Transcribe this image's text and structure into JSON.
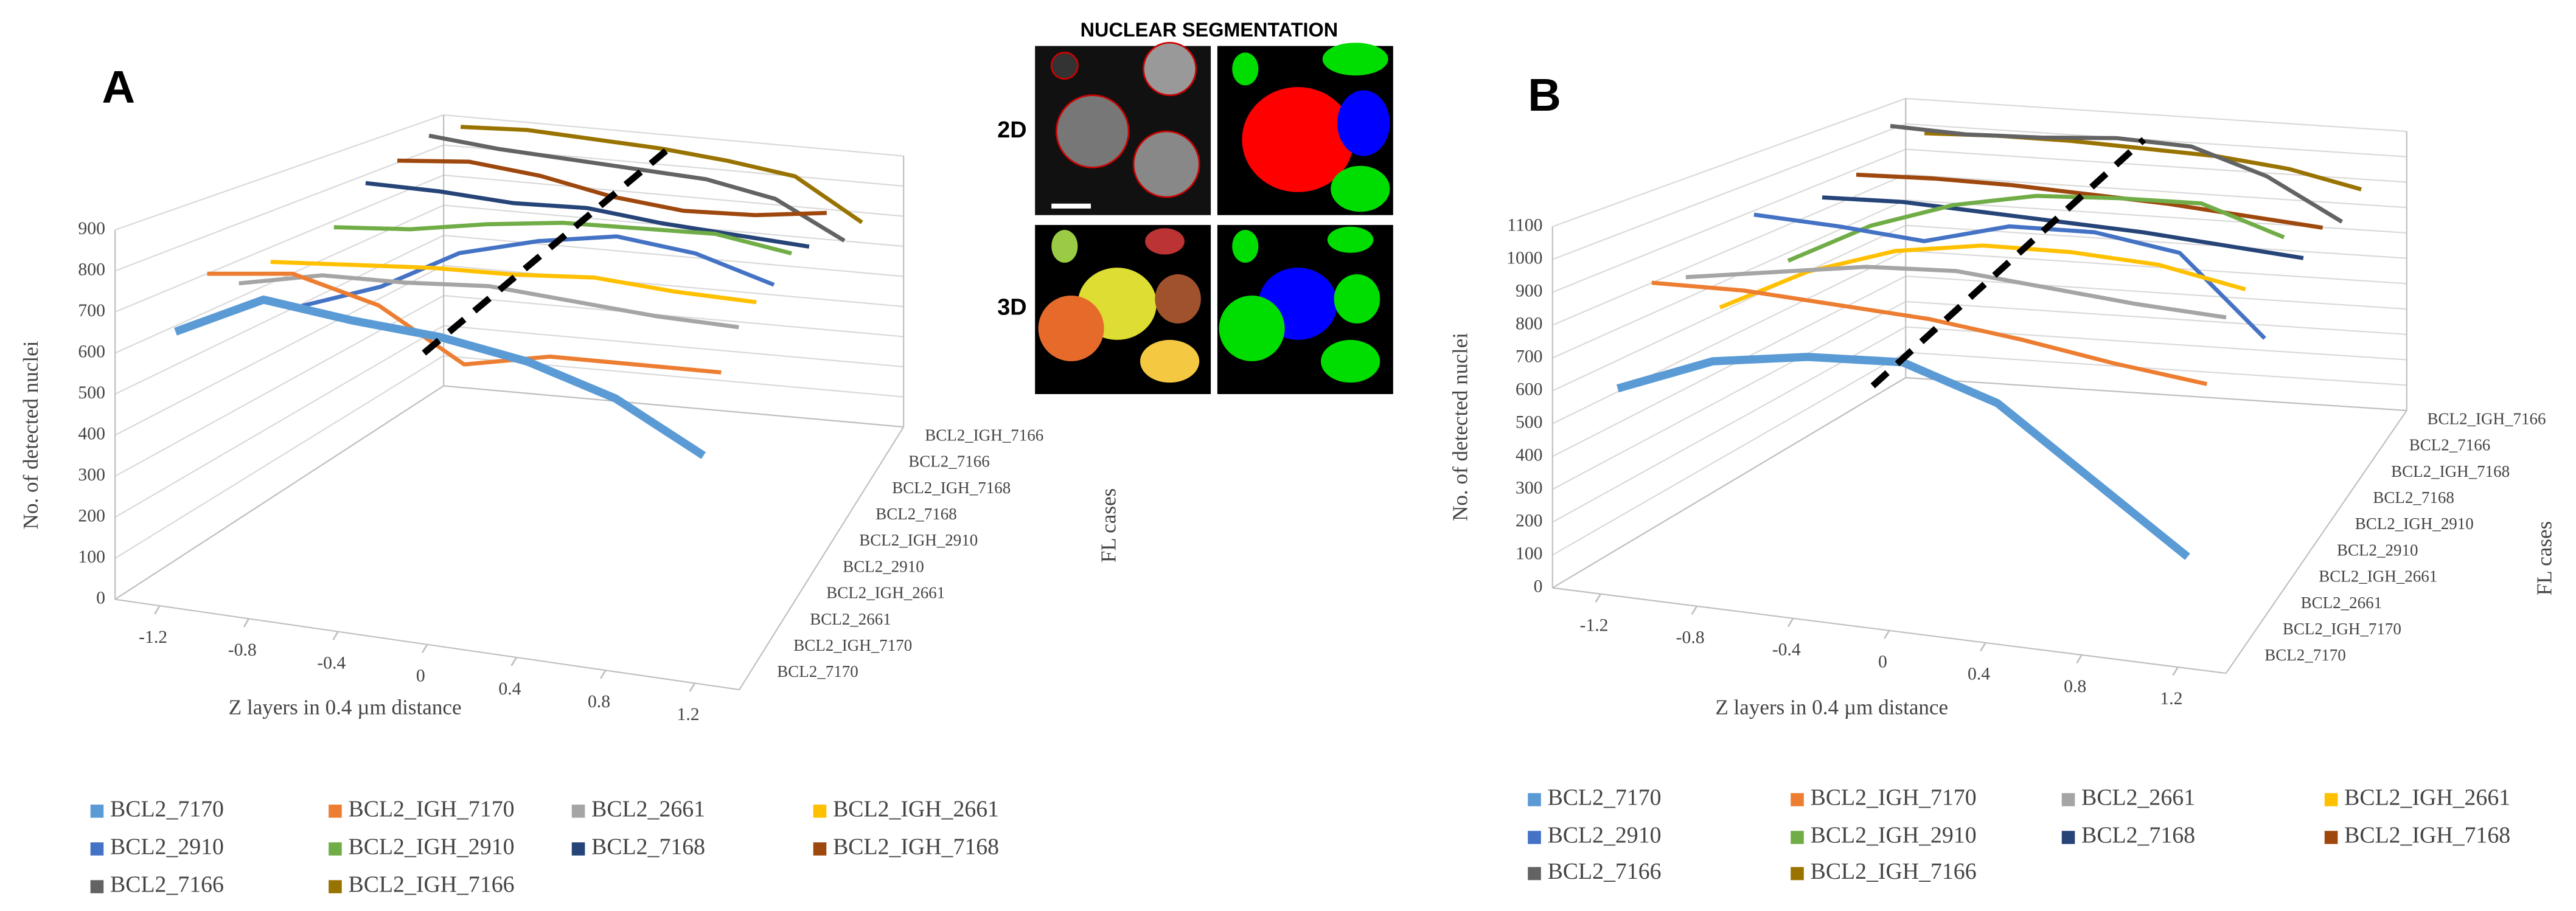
{
  "chart_data": [
    {
      "type": "line",
      "panel": "A",
      "ylabel": "No. of detected nuclei",
      "xlabel": "Z layers in 0.4 µm distance",
      "zlabel": "FL cases",
      "x": [
        -1.2,
        -0.8,
        -0.4,
        0,
        0.4,
        0.8,
        1.2
      ],
      "xlim": [
        -1.4,
        1.4
      ],
      "xticks": [
        -1.2,
        -0.8,
        -0.4,
        0,
        0.4,
        0.8,
        1.2
      ],
      "ylim": [
        0,
        900
      ],
      "yticks": [
        0,
        100,
        200,
        300,
        400,
        500,
        600,
        700,
        800,
        900
      ],
      "grid": true,
      "series": [
        {
          "name": "BCL2_7170",
          "color": "#5b9bd5",
          "values": [
            650,
            760,
            740,
            730,
            700,
            640,
            530
          ]
        },
        {
          "name": "BCL2_IGH_7170",
          "color": "#ed7d31",
          "values": [
            760,
            790,
            740,
            620,
            670,
            680,
            690
          ]
        },
        {
          "name": "BCL2_2661",
          "color": "#a5a5a5",
          "values": [
            700,
            750,
            760,
            780,
            770,
            760,
            760
          ]
        },
        {
          "name": "BCL2_IGH_2661",
          "color": "#ffc000",
          "values": [
            720,
            740,
            760,
            770,
            790,
            780,
            780
          ]
        },
        {
          "name": "BCL2_2910",
          "color": "#4472c4",
          "values": [
            560,
            640,
            760,
            820,
            860,
            840,
            780
          ]
        },
        {
          "name": "BCL2_IGH_2910",
          "color": "#70ad47",
          "values": [
            740,
            760,
            800,
            830,
            840,
            850,
            820
          ]
        },
        {
          "name": "BCL2_7168",
          "color": "#264478",
          "values": [
            830,
            830,
            820,
            830,
            810,
            800,
            790
          ]
        },
        {
          "name": "BCL2_IGH_7168",
          "color": "#9e480e",
          "values": [
            860,
            880,
            860,
            820,
            800,
            810,
            840
          ]
        },
        {
          "name": "BCL2_7166",
          "color": "#636363",
          "values": [
            900,
            880,
            870,
            860,
            850,
            810,
            700
          ]
        },
        {
          "name": "BCL2_IGH_7166",
          "color": "#997300",
          "values": [
            890,
            900,
            890,
            880,
            860,
            830,
            700
          ]
        }
      ]
    },
    {
      "type": "line",
      "panel": "B",
      "ylabel": "No. of detected nuclei",
      "xlabel": "Z layers in 0.4 µm distance",
      "zlabel": "FL cases",
      "x": [
        -1.2,
        -0.8,
        -0.4,
        0,
        0.4,
        0.8,
        1.2
      ],
      "xlim": [
        -1.4,
        1.4
      ],
      "xticks": [
        -1.2,
        -0.8,
        -0.4,
        0,
        0.4,
        0.8,
        1.2
      ],
      "ylim": [
        0,
        1100
      ],
      "yticks": [
        0,
        100,
        200,
        300,
        400,
        500,
        600,
        700,
        800,
        900,
        1000,
        1100
      ],
      "grid": true,
      "series": [
        {
          "name": "BCL2_7170",
          "color": "#5b9bd5",
          "values": [
            600,
            720,
            770,
            790,
            700,
            500,
            300
          ]
        },
        {
          "name": "BCL2_IGH_7170",
          "color": "#ed7d31",
          "values": [
            880,
            890,
            880,
            870,
            840,
            800,
            770
          ]
        },
        {
          "name": "BCL2_2661",
          "color": "#a5a5a5",
          "values": [
            850,
            900,
            950,
            970,
            950,
            930,
            920
          ]
        },
        {
          "name": "BCL2_IGH_2661",
          "color": "#ffc000",
          "values": [
            700,
            850,
            950,
            1000,
            1010,
            1000,
            950
          ]
        },
        {
          "name": "BCL2_2910",
          "color": "#4472c4",
          "values": [
            960,
            950,
            930,
            1010,
            1020,
            980,
            720
          ]
        },
        {
          "name": "BCL2_IGH_2910",
          "color": "#70ad47",
          "values": [
            750,
            900,
            1000,
            1060,
            1080,
            1090,
            1000
          ]
        },
        {
          "name": "BCL2_7168",
          "color": "#264478",
          "values": [
            920,
            930,
            920,
            910,
            900,
            880,
            860
          ]
        },
        {
          "name": "BCL2_IGH_7168",
          "color": "#9e480e",
          "values": [
            950,
            960,
            960,
            950,
            940,
            920,
            900
          ]
        },
        {
          "name": "BCL2_7166",
          "color": "#636363",
          "values": [
            1080,
            1070,
            1080,
            1100,
            1090,
            1000,
            850
          ]
        },
        {
          "name": "BCL2_IGH_7166",
          "color": "#997300",
          "values": [
            1000,
            1010,
            1010,
            1000,
            990,
            960,
            900
          ]
        }
      ]
    }
  ],
  "segmentation": {
    "title": "NUCLEAR SEGMENTATION",
    "row_labels": [
      "2D",
      "3D"
    ]
  }
}
